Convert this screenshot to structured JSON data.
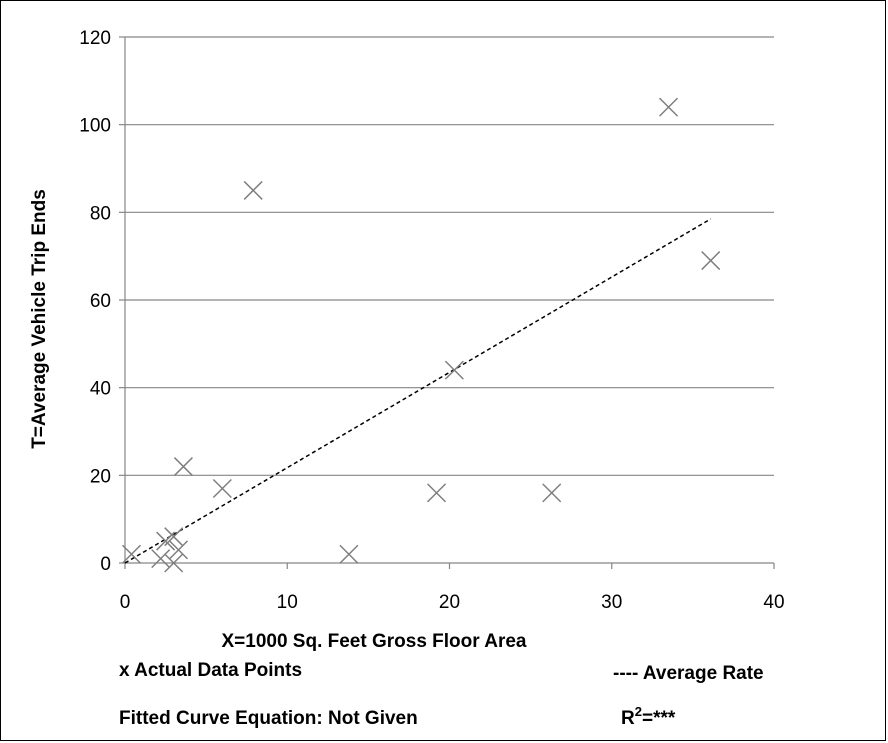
{
  "chart_data": {
    "type": "scatter",
    "xlabel": "X=1000 Sq. Feet Gross Floor Area",
    "ylabel": "T=Average  Vehicle Trip Ends",
    "xlim": [
      0,
      40
    ],
    "ylim": [
      0,
      120
    ],
    "xticks": [
      0,
      10,
      20,
      30,
      40
    ],
    "yticks": [
      0,
      20,
      40,
      60,
      80,
      100,
      120
    ],
    "grid": "horizontal",
    "colors": {
      "marker": "#7f7f7f",
      "grid": "#868686",
      "trend": "#000000"
    },
    "series": [
      {
        "marker": "x",
        "points": [
          {
            "x": 0.4,
            "y": 2
          },
          {
            "x": 2.2,
            "y": 1
          },
          {
            "x": 2.5,
            "y": 5
          },
          {
            "x": 3.0,
            "y": 0
          },
          {
            "x": 3.0,
            "y": 6
          },
          {
            "x": 3.3,
            "y": 3
          },
          {
            "x": 3.6,
            "y": 22
          },
          {
            "x": 6.0,
            "y": 17
          },
          {
            "x": 7.9,
            "y": 85
          },
          {
            "x": 13.8,
            "y": 2
          },
          {
            "x": 19.2,
            "y": 16
          },
          {
            "x": 20.3,
            "y": 44
          },
          {
            "x": 26.3,
            "y": 16
          },
          {
            "x": 33.5,
            "y": 104
          },
          {
            "x": 36.1,
            "y": 69
          }
        ]
      },
      {
        "line": "dashed",
        "points": [
          {
            "x": 0,
            "y": 0
          },
          {
            "x": 36.1,
            "y": 78.5
          }
        ]
      }
    ]
  },
  "legend": {
    "data_points": "x Actual Data Points",
    "average_rate": "---- Average Rate",
    "fitted_curve": "Fitted Curve Equation: Not Given",
    "r2_prefix": "R",
    "r2_sup": "2",
    "r2_value": "=***"
  }
}
